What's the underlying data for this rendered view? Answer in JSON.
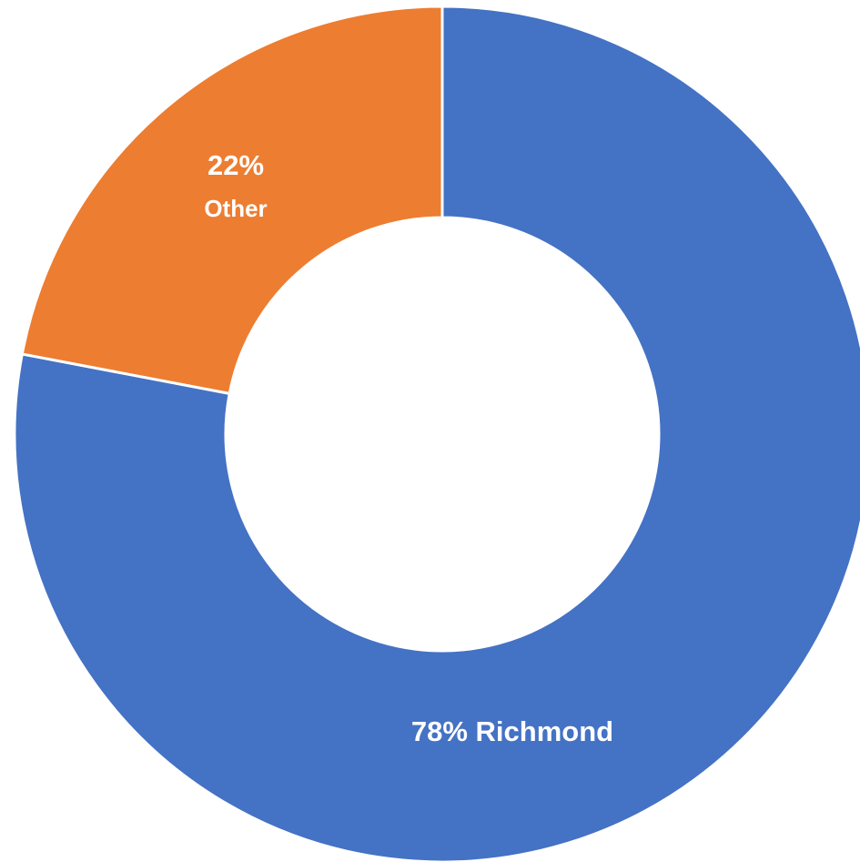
{
  "chart_data": {
    "type": "pie",
    "variant": "donut",
    "categories": [
      "Richmond",
      "Other"
    ],
    "values": [
      78,
      22
    ],
    "colors": [
      "#4472C4",
      "#ED7D31"
    ],
    "labels": [
      {
        "category": "Richmond",
        "text": "78% Richmond"
      },
      {
        "category": "Other",
        "pct": "22%",
        "name": "Other"
      }
    ],
    "title": "",
    "legend": "none"
  }
}
